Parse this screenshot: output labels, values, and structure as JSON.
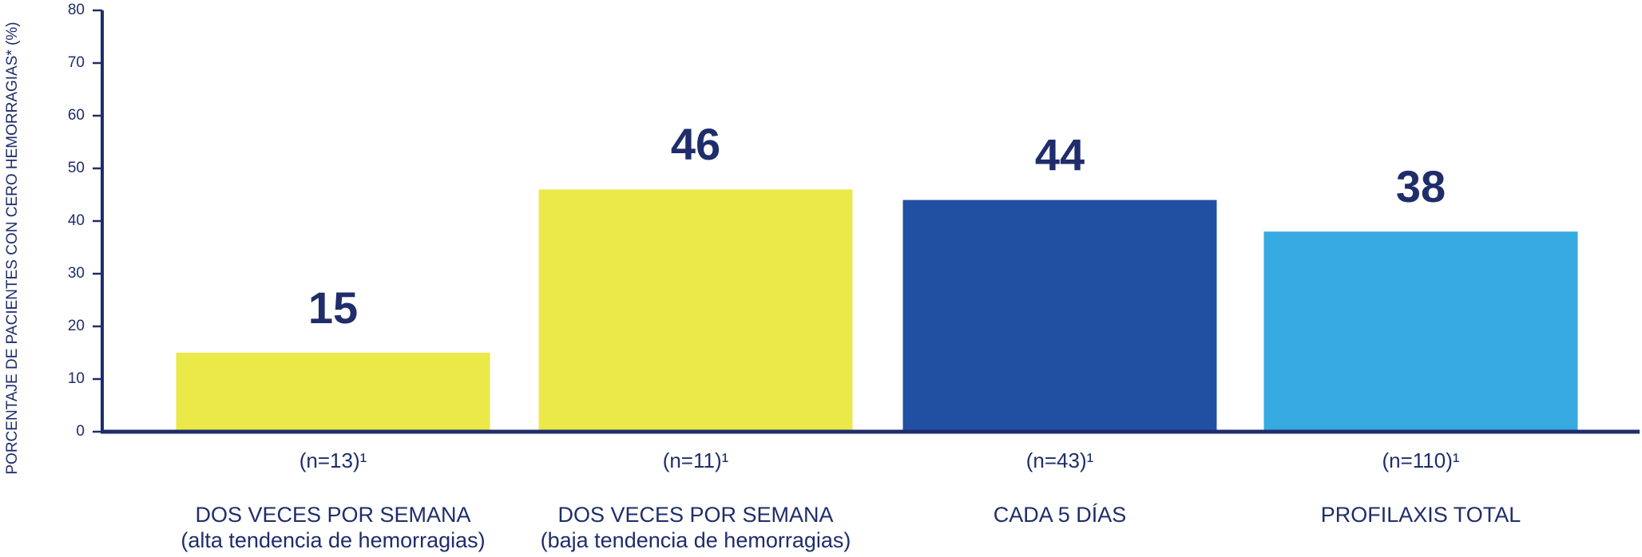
{
  "chart_data": {
    "type": "bar",
    "y_label": "PORCENTAJE DE PACIENTES CON CERO HEMORRAGIAS* (%)",
    "categories": [
      [
        "DOS VECES POR SEMANA",
        "(alta tendencia de hemorragias)"
      ],
      [
        "DOS VECES POR SEMANA",
        "(baja tendencia de hemorragias)"
      ],
      [
        "CADA 5 DÍAS"
      ],
      [
        "PROFILAXIS TOTAL"
      ]
    ],
    "sample_sizes": [
      "(n=13)¹",
      "(n=11)¹",
      "(n=43)¹",
      "(n=110)¹"
    ],
    "values": [
      15,
      46,
      44,
      38
    ],
    "colors": [
      "#ebe84a",
      "#ebe84a",
      "#2150a3",
      "#36a9e0"
    ],
    "ylim": [
      0,
      80
    ],
    "yticks": [
      0,
      10,
      20,
      30,
      40,
      50,
      60,
      70,
      80
    ]
  }
}
